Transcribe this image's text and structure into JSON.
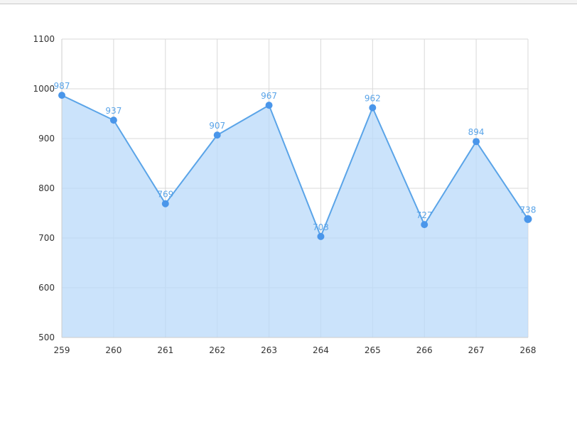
{
  "chart_data": {
    "type": "area",
    "title": "",
    "xlabel": "",
    "ylabel": "",
    "x": [
      "259",
      "260",
      "261",
      "262",
      "263",
      "264",
      "265",
      "266",
      "267",
      "268"
    ],
    "series": [
      {
        "values": [
          987,
          937,
          769,
          907,
          967,
          703,
          962,
          727,
          894,
          738
        ]
      }
    ],
    "ylim": [
      500,
      1100
    ],
    "yticks": [
      500,
      600,
      700,
      800,
      900,
      1000,
      1100
    ],
    "grid": true,
    "legend": "none",
    "data_labels": true,
    "colors": {
      "line": "#5aa4e8",
      "fill": "#b9d9f9",
      "marker": "#4a96ea",
      "label": "#5aa4e8",
      "grid": "#d9d9d9"
    }
  }
}
